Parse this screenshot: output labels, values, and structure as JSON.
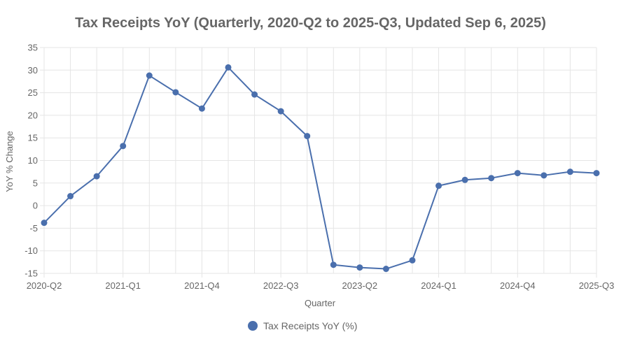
{
  "chart_data": {
    "type": "line",
    "title": "Tax Receipts YoY (Quarterly, 2020-Q2 to 2025-Q3, Updated Sep 6, 2025)",
    "xlabel": "Quarter",
    "ylabel": "YoY % Change",
    "ylim": [
      -15,
      35
    ],
    "y_ticks": [
      -15,
      -10,
      -5,
      0,
      5,
      10,
      15,
      20,
      25,
      30,
      35
    ],
    "x_tick_labels": [
      "2020-Q2",
      "2021-Q1",
      "2021-Q4",
      "2022-Q3",
      "2023-Q2",
      "2024-Q1",
      "2024-Q4",
      "2025-Q3"
    ],
    "categories": [
      "2020-Q2",
      "2020-Q3",
      "2020-Q4",
      "2021-Q1",
      "2021-Q2",
      "2021-Q3",
      "2021-Q4",
      "2022-Q1",
      "2022-Q2",
      "2022-Q3",
      "2022-Q4",
      "2023-Q1",
      "2023-Q2",
      "2023-Q3",
      "2023-Q4",
      "2024-Q1",
      "2024-Q2",
      "2024-Q3",
      "2024-Q4",
      "2025-Q1",
      "2025-Q2",
      "2025-Q3"
    ],
    "grid": true,
    "legend": "bottom",
    "series": [
      {
        "name": "Tax Receipts YoY (%)",
        "color": "#4a6fad",
        "values": [
          -3.8,
          2.1,
          6.5,
          13.2,
          28.8,
          25.1,
          21.5,
          30.6,
          24.6,
          20.9,
          15.4,
          -13.1,
          -13.7,
          -14.0,
          -12.1,
          4.4,
          5.7,
          6.1,
          7.2,
          6.7,
          7.5,
          7.2
        ]
      }
    ]
  }
}
